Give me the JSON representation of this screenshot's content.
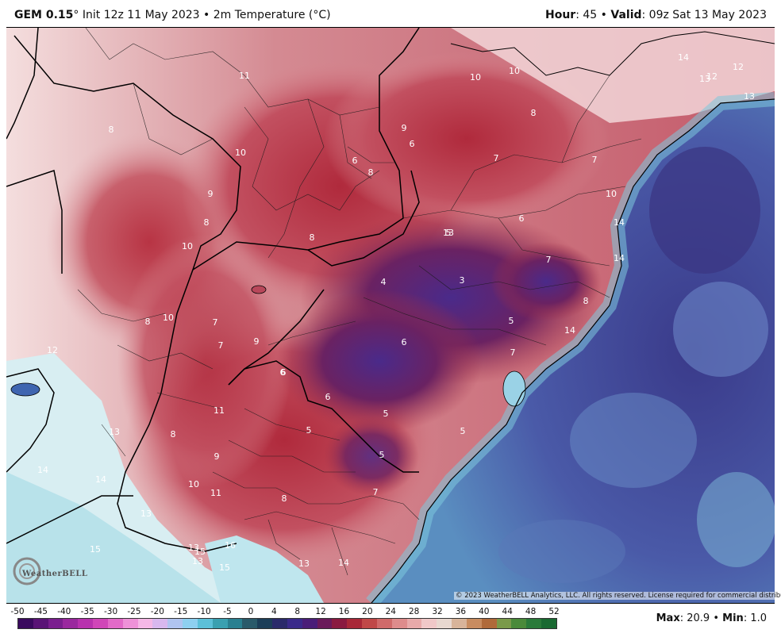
{
  "header": {
    "model": "GEM 0.15",
    "degree_mark": "°",
    "init": "Init 12z 11 May 2023",
    "bullet": "•",
    "field": "2m Temperature (°C)",
    "hour_label": "Hour",
    "hour_value": ": 45",
    "valid_label": "Valid",
    "valid_value": ": 09z Sat 13 May 2023"
  },
  "copyright": "© 2023 WeatherBELL Analytics, LLC. All rights reserved. License required for commercial distribution.",
  "logo": {
    "text": "WeatherBELL",
    "icon": "weatherbell-logo-icon"
  },
  "colorbar": {
    "ticks": [
      "-50",
      "-45",
      "-40",
      "-35",
      "-30",
      "-25",
      "-20",
      "-15",
      "-10",
      "-5",
      "0",
      "4",
      "8",
      "12",
      "16",
      "20",
      "24",
      "28",
      "32",
      "36",
      "40",
      "44",
      "48",
      "52"
    ],
    "colors": [
      "#3a0a5e",
      "#5a1476",
      "#7a1e8e",
      "#9a289e",
      "#b832ae",
      "#d046b8",
      "#e26ac8",
      "#ee92d8",
      "#f5b8e6",
      "#d8b8ee",
      "#b0c4f0",
      "#8ed0f0",
      "#5cc0d8",
      "#3aa0b0",
      "#2a8090",
      "#2a5a6a",
      "#1c3e58",
      "#2a2a6a",
      "#3a2a8a",
      "#4a1e78",
      "#6a1a5a",
      "#8a1a40",
      "#a82838",
      "#c04848",
      "#d06a6a",
      "#de8c8c",
      "#e8aaaa",
      "#f0c8c8",
      "#e8d8d0",
      "#d8b49a",
      "#c88c60",
      "#b06a3a",
      "#7a9a4a",
      "#4a8a3a",
      "#2a7a3a",
      "#1a6a32"
    ]
  },
  "stats": {
    "max_label": "Max",
    "max_value": ": 20.9",
    "bullet": "•",
    "min_label": "Min",
    "min_value": ": 1.0"
  },
  "temp_labels": [
    "8",
    "11",
    "10",
    "9",
    "8",
    "10",
    "8",
    "10",
    "7",
    "7",
    "9",
    "12",
    "6",
    "6",
    "13",
    "11",
    "8",
    "9",
    "10",
    "14",
    "14",
    "11",
    "13",
    "15",
    "13",
    "15",
    "16",
    "15",
    "13",
    "13",
    "14",
    "8",
    "7",
    "5",
    "5",
    "5",
    "6",
    "4",
    "3",
    "5",
    "6",
    "5",
    "7",
    "8",
    "14",
    "7",
    "6",
    "7",
    "6",
    "9",
    "6",
    "8",
    "10",
    "10",
    "8",
    "7",
    "10",
    "14",
    "14",
    "14",
    "13",
    "12",
    "12",
    "13",
    "13",
    "5",
    "8",
    "9"
  ],
  "colors": {
    "warm": "#b83a4c",
    "cold": "#4a4a9a",
    "ocean": "#4a64b0",
    "border": "#000000"
  }
}
